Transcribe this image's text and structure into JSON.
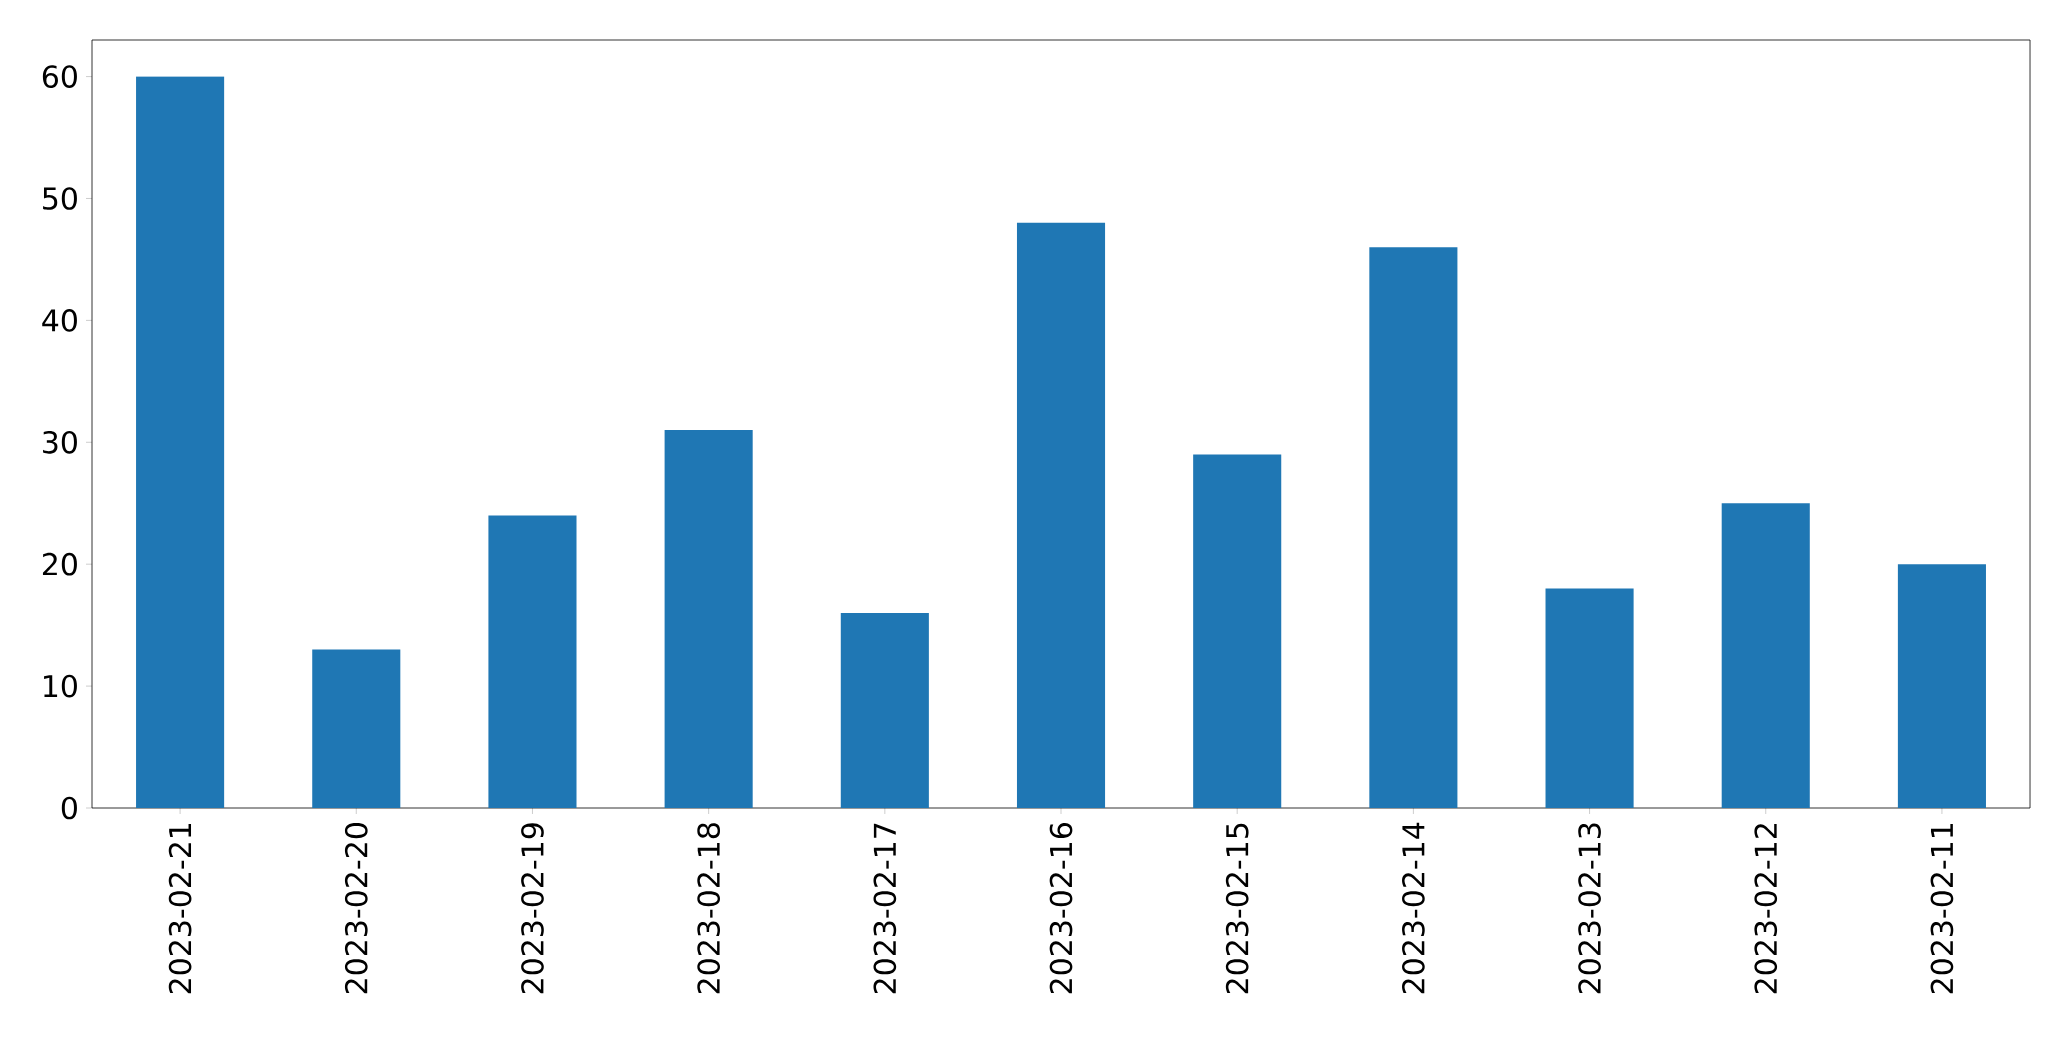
{
  "chart_data": {
    "type": "bar",
    "categories": [
      "2023-02-21",
      "2023-02-20",
      "2023-02-19",
      "2023-02-18",
      "2023-02-17",
      "2023-02-16",
      "2023-02-15",
      "2023-02-14",
      "2023-02-13",
      "2023-02-12",
      "2023-02-11"
    ],
    "values": [
      60,
      13,
      24,
      31,
      16,
      48,
      29,
      46,
      18,
      25,
      20
    ],
    "color": "#1f77b4",
    "ylim": [
      0,
      63
    ],
    "yticks": [
      0,
      10,
      20,
      30,
      40,
      50,
      60
    ],
    "grid": false
  }
}
